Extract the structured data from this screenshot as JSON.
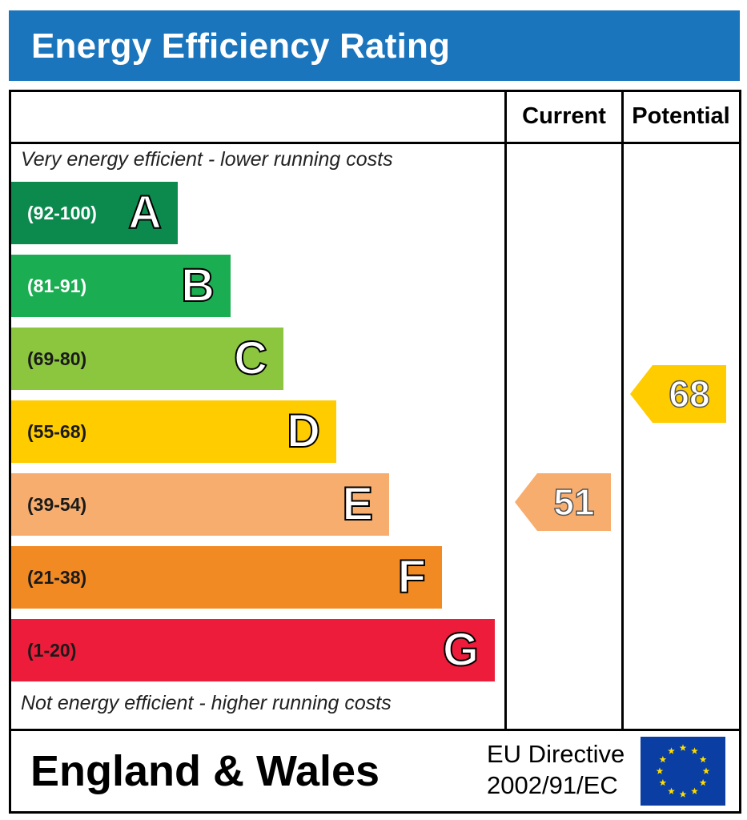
{
  "header": {
    "title": "Energy Efficiency Rating"
  },
  "columns": {
    "current": "Current",
    "potential": "Potential"
  },
  "notes": {
    "top": "Very energy efficient - lower running costs",
    "bottom": "Not energy efficient - higher running costs"
  },
  "chart_data": {
    "type": "bar",
    "title": "Energy Efficiency Rating",
    "bands": [
      {
        "letter": "A",
        "range": "(92-100)",
        "min": 92,
        "max": 100,
        "color": "#0c8a4e"
      },
      {
        "letter": "B",
        "range": "(81-91)",
        "min": 81,
        "max": 91,
        "color": "#1bad52"
      },
      {
        "letter": "C",
        "range": "(69-80)",
        "min": 69,
        "max": 80,
        "color": "#8cc63f"
      },
      {
        "letter": "D",
        "range": "(55-68)",
        "min": 55,
        "max": 68,
        "color": "#ffcc00"
      },
      {
        "letter": "E",
        "range": "(39-54)",
        "min": 39,
        "max": 54,
        "color": "#f7ad6e"
      },
      {
        "letter": "F",
        "range": "(21-38)",
        "min": 21,
        "max": 38,
        "color": "#f28a24"
      },
      {
        "letter": "G",
        "range": "(1-20)",
        "min": 1,
        "max": 20,
        "color": "#ec1c3a"
      }
    ],
    "current": {
      "value": 51,
      "band": "E",
      "color": "#f7ad6e"
    },
    "potential": {
      "value": 68,
      "band": "D",
      "color": "#ffcc00"
    }
  },
  "footer": {
    "region": "England & Wales",
    "directive_line1": "EU Directive",
    "directive_line2": "2002/91/EC",
    "flag_colors": {
      "field": "#0a3ea3",
      "stars": "#ffdd00"
    }
  }
}
